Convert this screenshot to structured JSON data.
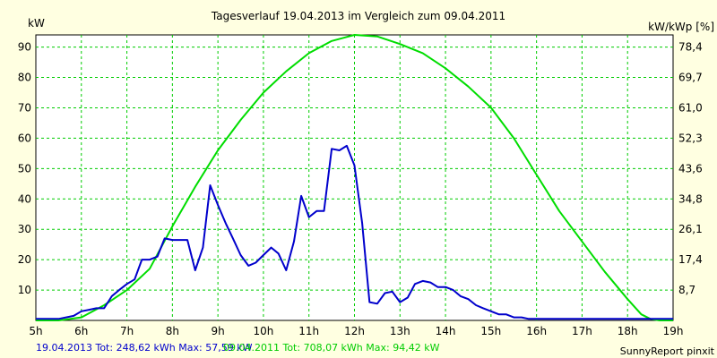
{
  "chart_data": {
    "type": "line",
    "title": "Tagesverlauf 19.04.2013 im Vergleich zum 09.04.2011",
    "ylabel": "kW",
    "ylabel_right": "kW/kWp [%]",
    "xlabel": "",
    "xlim": [
      5,
      19
    ],
    "ylim": [
      0,
      94
    ],
    "grid": true,
    "x_ticks": [
      "5h",
      "6h",
      "7h",
      "8h",
      "9h",
      "10h",
      "11h",
      "12h",
      "13h",
      "14h",
      "15h",
      "16h",
      "17h",
      "18h",
      "19h"
    ],
    "y_ticks": [
      10,
      20,
      30,
      40,
      50,
      60,
      70,
      80,
      90
    ],
    "y_right_ticks": [
      "8,7",
      "17,4",
      "26,1",
      "34,8",
      "43,6",
      "52,3",
      "61,0",
      "69,7",
      "78,4"
    ],
    "series": [
      {
        "name": "19.04.2013",
        "color": "#0000cc",
        "x": [
          5.0,
          5.5,
          5.83,
          6.0,
          6.17,
          6.33,
          6.5,
          6.67,
          6.83,
          7.0,
          7.17,
          7.33,
          7.5,
          7.67,
          7.83,
          8.0,
          8.17,
          8.33,
          8.5,
          8.67,
          8.83,
          9.0,
          9.17,
          9.33,
          9.5,
          9.67,
          9.83,
          10.0,
          10.17,
          10.33,
          10.5,
          10.67,
          10.83,
          11.0,
          11.17,
          11.33,
          11.5,
          11.67,
          11.83,
          12.0,
          12.17,
          12.33,
          12.5,
          12.67,
          12.83,
          13.0,
          13.17,
          13.33,
          13.5,
          13.67,
          13.83,
          14.0,
          14.17,
          14.33,
          14.5,
          14.67,
          14.83,
          15.0,
          15.17,
          15.33,
          15.5,
          15.67,
          15.83,
          16.0,
          16.17,
          16.33,
          16.5,
          16.67,
          16.83,
          17.0,
          17.17,
          17.33,
          17.5,
          17.67,
          17.83,
          18.0,
          18.17,
          18.33,
          18.5,
          19.0
        ],
        "values": [
          0.5,
          0.5,
          1.5,
          3,
          3.5,
          4,
          4,
          8,
          10,
          12,
          13.5,
          20,
          20,
          21,
          27,
          26.5,
          26.5,
          26.5,
          16.5,
          24,
          44.5,
          38,
          32,
          27,
          21.5,
          18,
          19,
          21.5,
          24,
          22,
          16.5,
          26,
          41,
          34,
          36,
          36,
          56.5,
          56,
          57.5,
          51,
          32,
          6,
          5.5,
          9,
          9.5,
          6,
          7.5,
          12,
          13,
          12.5,
          11,
          11,
          10,
          8,
          7,
          5,
          4,
          3,
          2,
          2,
          1,
          1,
          0.5,
          0.5,
          0.5,
          0.5,
          0.5,
          0.5,
          0.5,
          0.5,
          0.5,
          0.5,
          0.5,
          0.5,
          0.5,
          0.5,
          0.5,
          0.5,
          0.5,
          0.5
        ]
      },
      {
        "name": "09.04.2011",
        "color": "#00dd00",
        "x": [
          5.0,
          5.5,
          6.0,
          6.5,
          7.0,
          7.5,
          8.0,
          8.5,
          9.0,
          9.5,
          10.0,
          10.5,
          11.0,
          11.5,
          12.0,
          12.5,
          13.0,
          13.5,
          14.0,
          14.5,
          15.0,
          15.5,
          16.0,
          16.5,
          17.0,
          17.5,
          18.0,
          18.3,
          18.5,
          18.7,
          19.0
        ],
        "values": [
          0,
          0,
          1,
          5,
          10,
          17,
          31,
          44,
          56,
          66,
          75,
          82,
          88,
          92,
          94,
          93.5,
          91,
          88,
          83,
          77,
          70,
          60,
          48,
          36,
          26,
          16,
          7,
          2,
          0.5,
          0,
          0
        ]
      }
    ]
  },
  "footer": {
    "legend_2013": "19.04.2013 Tot: 248,62 kWh Max: 57,59 kW",
    "legend_2011": "09.04.2011 Tot: 708,07 kWh Max: 94,42 kW",
    "credit": "SunnyReport pinxit"
  }
}
